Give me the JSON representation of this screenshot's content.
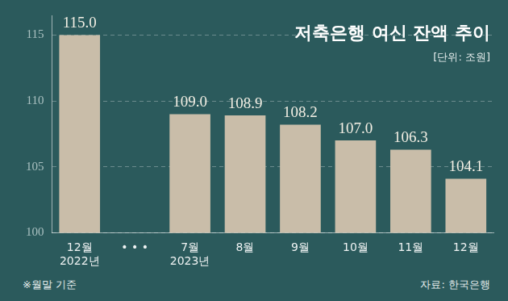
{
  "chart_data": {
    "type": "bar",
    "title": "저축은행 여신 잔액 추이",
    "subtitle": "[단위: 조원]",
    "note": "※월말 기준",
    "source": "자료: 한국은행",
    "categories": [
      [
        "12월",
        "2022년"
      ],
      "• • •",
      [
        "7월",
        "2023년"
      ],
      "8월",
      "9월",
      "10월",
      "11월",
      "12월"
    ],
    "values": [
      115.0,
      null,
      109.0,
      108.9,
      108.2,
      107.0,
      106.3,
      104.1
    ],
    "value_labels": [
      "115.0",
      null,
      "109.0",
      "108.9",
      "108.2",
      "107.0",
      "106.3",
      "104.1"
    ],
    "color": "#c9bda9",
    "ylim": [
      100,
      116.5
    ],
    "yticks": [
      100,
      105,
      110,
      115
    ],
    "grid": true,
    "data_labels": true
  }
}
